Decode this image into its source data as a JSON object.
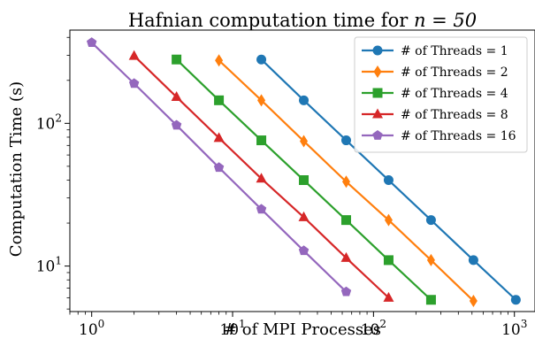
{
  "chart_data": {
    "type": "line",
    "title": "Hafnian computation time for",
    "title_math": "n = 50",
    "xlabel": "# of MPI Processes",
    "ylabel": "Computation Time (s)",
    "xscale": "log",
    "yscale": "log",
    "xlim": [
      0.7,
      1400
    ],
    "ylim": [
      4.8,
      450
    ],
    "xticks": [
      {
        "value": 1,
        "base": "10",
        "exp": "0"
      },
      {
        "value": 10,
        "base": "10",
        "exp": "1"
      },
      {
        "value": 100,
        "base": "10",
        "exp": "2"
      },
      {
        "value": 1000,
        "base": "10",
        "exp": "3"
      }
    ],
    "yticks": [
      {
        "value": 10,
        "base": "10",
        "exp": "1"
      },
      {
        "value": 100,
        "base": "10",
        "exp": "2"
      }
    ],
    "grid": false,
    "legend_position": "upper right",
    "series": [
      {
        "name": "# of Threads = 1",
        "color": "#1f77b4",
        "marker": "circle",
        "x": [
          16,
          32,
          64,
          128,
          256,
          512,
          1024
        ],
        "y": [
          280,
          145,
          76,
          40,
          21,
          11,
          5.8
        ]
      },
      {
        "name": "# of Threads = 2",
        "color": "#ff7f0e",
        "marker": "diamond",
        "x": [
          8,
          16,
          32,
          64,
          128,
          256,
          512
        ],
        "y": [
          276,
          145,
          75,
          39,
          21,
          11,
          5.7
        ]
      },
      {
        "name": "# of Threads = 4",
        "color": "#2ca02c",
        "marker": "square",
        "x": [
          4,
          8,
          16,
          32,
          64,
          128,
          256
        ],
        "y": [
          280,
          145,
          76,
          40,
          21,
          11,
          5.8
        ]
      },
      {
        "name": "# of Threads = 8",
        "color": "#d62728",
        "marker": "triangle",
        "x": [
          2,
          4,
          8,
          16,
          32,
          64,
          128
        ],
        "y": [
          297,
          153,
          79,
          41,
          22,
          11.4,
          6.0
        ]
      },
      {
        "name": "# of Threads = 16",
        "color": "#9467bd",
        "marker": "pentagon",
        "x": [
          1,
          2,
          4,
          8,
          16,
          32,
          64
        ],
        "y": [
          368,
          190,
          97,
          49,
          25,
          12.8,
          6.6
        ]
      }
    ]
  }
}
